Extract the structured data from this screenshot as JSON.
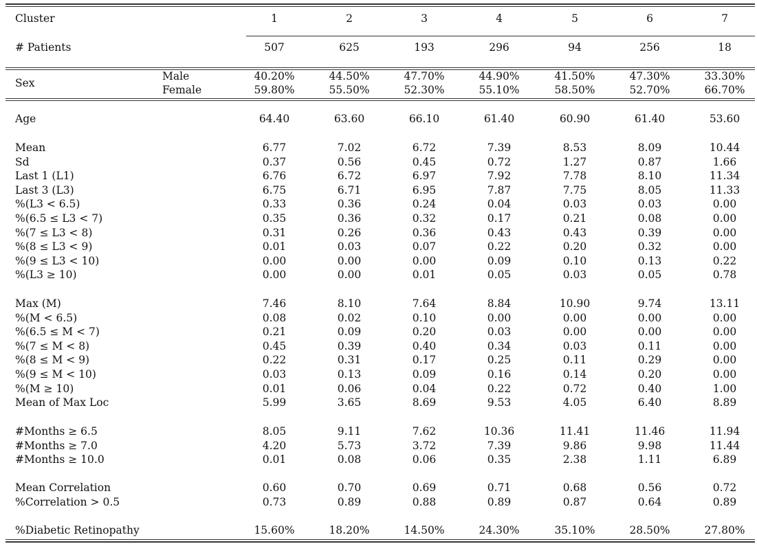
{
  "header": {
    "label": "Cluster",
    "clusters": [
      "1",
      "2",
      "3",
      "4",
      "5",
      "6",
      "7"
    ]
  },
  "patients": {
    "label": "# Patients",
    "values": [
      "507",
      "625",
      "193",
      "296",
      "94",
      "256",
      "18"
    ]
  },
  "sex": {
    "label": "Sex",
    "male_label": "Male",
    "female_label": "Female",
    "male": [
      "40.20%",
      "44.50%",
      "47.70%",
      "44.90%",
      "41.50%",
      "47.30%",
      "33.30%"
    ],
    "female": [
      "59.80%",
      "55.50%",
      "52.30%",
      "55.10%",
      "58.50%",
      "52.70%",
      "66.70%"
    ]
  },
  "age": {
    "label": "Age",
    "values": [
      "64.40",
      "63.60",
      "66.10",
      "61.40",
      "60.90",
      "61.40",
      "53.60"
    ]
  },
  "groups": [
    {
      "rows": [
        {
          "label": "Mean",
          "values": [
            "6.77",
            "7.02",
            "6.72",
            "7.39",
            "8.53",
            "8.09",
            "10.44"
          ]
        },
        {
          "label": "Sd",
          "values": [
            "0.37",
            "0.56",
            "0.45",
            "0.72",
            "1.27",
            "0.87",
            "1.66"
          ]
        },
        {
          "label": "Last 1 (L1)",
          "values": [
            "6.76",
            "6.72",
            "6.97",
            "7.92",
            "7.78",
            "8.10",
            "11.34"
          ]
        },
        {
          "label": "Last 3 (L3)",
          "values": [
            "6.75",
            "6.71",
            "6.95",
            "7.87",
            "7.75",
            "8.05",
            "11.33"
          ]
        },
        {
          "label": "%(L3 < 6.5)",
          "values": [
            "0.33",
            "0.36",
            "0.24",
            "0.04",
            "0.03",
            "0.03",
            "0.00"
          ]
        },
        {
          "label": "%(6.5 ≤ L3 < 7)",
          "values": [
            "0.35",
            "0.36",
            "0.32",
            "0.17",
            "0.21",
            "0.08",
            "0.00"
          ]
        },
        {
          "label": "%(7 ≤ L3 < 8)",
          "values": [
            "0.31",
            "0.26",
            "0.36",
            "0.43",
            "0.43",
            "0.39",
            "0.00"
          ]
        },
        {
          "label": "%(8 ≤ L3 < 9)",
          "values": [
            "0.01",
            "0.03",
            "0.07",
            "0.22",
            "0.20",
            "0.32",
            "0.00"
          ]
        },
        {
          "label": "%(9 ≤ L3 < 10)",
          "values": [
            "0.00",
            "0.00",
            "0.00",
            "0.09",
            "0.10",
            "0.13",
            "0.22"
          ]
        },
        {
          "label": "%(L3 ≥ 10)",
          "values": [
            "0.00",
            "0.00",
            "0.01",
            "0.05",
            "0.03",
            "0.05",
            "0.78"
          ]
        }
      ]
    },
    {
      "rows": [
        {
          "label": "Max (M)",
          "values": [
            "7.46",
            "8.10",
            "7.64",
            "8.84",
            "10.90",
            "9.74",
            "13.11"
          ]
        },
        {
          "label": "%(M < 6.5)",
          "values": [
            "0.08",
            "0.02",
            "0.10",
            "0.00",
            "0.00",
            "0.00",
            "0.00"
          ]
        },
        {
          "label": "%(6.5 ≤ M < 7)",
          "values": [
            "0.21",
            "0.09",
            "0.20",
            "0.03",
            "0.00",
            "0.00",
            "0.00"
          ]
        },
        {
          "label": "%(7 ≤ M < 8)",
          "values": [
            "0.45",
            "0.39",
            "0.40",
            "0.34",
            "0.03",
            "0.11",
            "0.00"
          ]
        },
        {
          "label": "%(8 ≤ M < 9)",
          "values": [
            "0.22",
            "0.31",
            "0.17",
            "0.25",
            "0.11",
            "0.29",
            "0.00"
          ]
        },
        {
          "label": "%(9 ≤ M < 10)",
          "values": [
            "0.03",
            "0.13",
            "0.09",
            "0.16",
            "0.14",
            "0.20",
            "0.00"
          ]
        },
        {
          "label": "%(M ≥ 10)",
          "values": [
            "0.01",
            "0.06",
            "0.04",
            "0.22",
            "0.72",
            "0.40",
            "1.00"
          ]
        },
        {
          "label": "Mean of Max Loc",
          "values": [
            "5.99",
            "3.65",
            "8.69",
            "9.53",
            "4.05",
            "6.40",
            "8.89"
          ]
        }
      ]
    },
    {
      "rows": [
        {
          "label": "#Months ≥ 6.5",
          "values": [
            "8.05",
            "9.11",
            "7.62",
            "10.36",
            "11.41",
            "11.46",
            "11.94"
          ]
        },
        {
          "label": "#Months ≥ 7.0",
          "values": [
            "4.20",
            "5.73",
            "3.72",
            "7.39",
            "9.86",
            "9.98",
            "11.44"
          ]
        },
        {
          "label": "#Months ≥ 10.0",
          "values": [
            "0.01",
            "0.08",
            "0.06",
            "0.35",
            "2.38",
            "1.11",
            "6.89"
          ]
        }
      ]
    },
    {
      "rows": [
        {
          "label": "Mean Correlation",
          "values": [
            "0.60",
            "0.70",
            "0.69",
            "0.71",
            "0.68",
            "0.56",
            "0.72"
          ]
        },
        {
          "label": "%Correlation > 0.5",
          "values": [
            "0.73",
            "0.89",
            "0.88",
            "0.89",
            "0.87",
            "0.64",
            "0.89"
          ]
        }
      ]
    },
    {
      "rows": [
        {
          "label": "%Diabetic Retinopathy",
          "values": [
            "15.60%",
            "18.20%",
            "14.50%",
            "24.30%",
            "35.10%",
            "28.50%",
            "27.80%"
          ]
        }
      ]
    }
  ]
}
